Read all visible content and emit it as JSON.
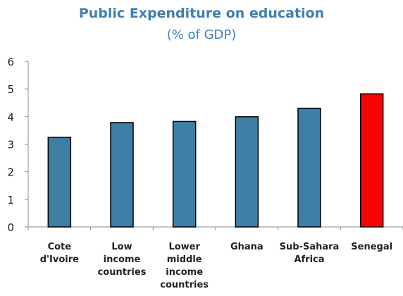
{
  "chart_data": {
    "type": "bar",
    "title": "Public Expenditure on education",
    "subtitle": "(% of GDP)",
    "categories": [
      [
        "Cote",
        "d'Ivoire"
      ],
      [
        "Low",
        "income",
        "countries"
      ],
      [
        "Lower",
        "middle",
        "income",
        "countries"
      ],
      [
        "Ghana"
      ],
      [
        "Sub-Sahara",
        "Africa"
      ],
      [
        "Senegal"
      ]
    ],
    "values": [
      3.25,
      3.78,
      3.82,
      3.99,
      4.3,
      4.82
    ],
    "colors": [
      "#3f7fa6",
      "#3f7fa6",
      "#3f7fa6",
      "#3f7fa6",
      "#3f7fa6",
      "#ff0000"
    ],
    "ylim": [
      0,
      6
    ],
    "yticks": [
      0,
      1,
      2,
      3,
      4,
      5,
      6
    ],
    "grid": false,
    "legend": "none"
  }
}
